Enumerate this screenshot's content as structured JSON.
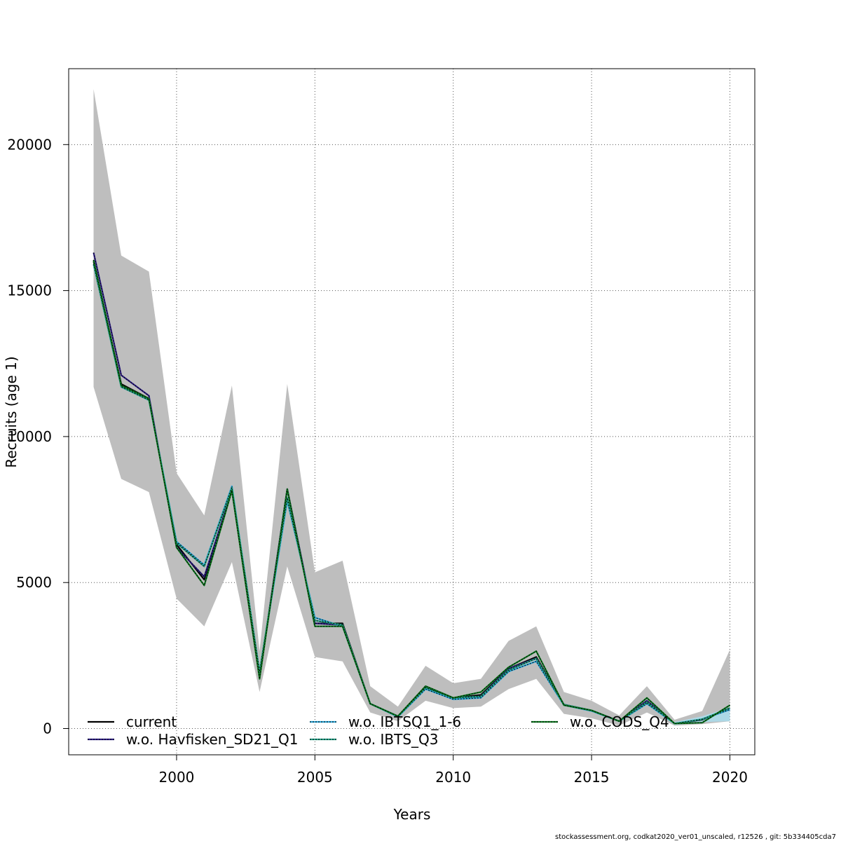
{
  "chart_data": {
    "type": "line",
    "title": "",
    "xlabel": "Years",
    "ylabel": "Recruits (age 1)",
    "xlim": [
      1996.1,
      2020.9
    ],
    "ylim": [
      -900,
      22600
    ],
    "x_ticks": [
      2000,
      2005,
      2010,
      2015,
      2020
    ],
    "x_tick_labels": [
      "2000",
      "2005",
      "2010",
      "2015",
      "2020"
    ],
    "y_ticks": [
      0,
      5000,
      10000,
      15000,
      20000
    ],
    "y_tick_labels": [
      "0",
      "5000",
      "10000",
      "15000",
      "20000"
    ],
    "grid": true,
    "legend_position": "bottom",
    "x": [
      1997,
      1998,
      1999,
      2000,
      2001,
      2002,
      2003,
      2004,
      2005,
      2006,
      2007,
      2008,
      2009,
      2010,
      2011,
      2012,
      2013,
      2014,
      2015,
      2016,
      2017,
      2018,
      2019,
      2020
    ],
    "confidence_band": {
      "color": "#BEBEBE",
      "upper": [
        21900,
        16200,
        15650,
        8750,
        7300,
        11750,
        2650,
        11800,
        5350,
        5750,
        1450,
        750,
        2150,
        1550,
        1700,
        3000,
        3500,
        1250,
        950,
        450,
        1450,
        300,
        600,
        2700
      ],
      "lower": [
        11700,
        8550,
        8100,
        4450,
        3500,
        5700,
        1250,
        5550,
        2450,
        2300,
        550,
        250,
        950,
        700,
        750,
        1350,
        1700,
        500,
        350,
        100,
        550,
        100,
        150,
        250
      ]
    },
    "extra_band": {
      "color": "#ADD8E6",
      "upper": [
        null,
        null,
        null,
        null,
        null,
        null,
        null,
        null,
        null,
        null,
        null,
        null,
        null,
        null,
        null,
        null,
        null,
        null,
        null,
        null,
        null,
        220,
        420,
        720
      ],
      "lower": [
        null,
        null,
        null,
        null,
        null,
        null,
        null,
        null,
        null,
        null,
        null,
        null,
        null,
        null,
        null,
        null,
        null,
        null,
        null,
        null,
        null,
        120,
        220,
        250
      ]
    },
    "series": [
      {
        "name": "current",
        "color": "#000000",
        "dash": "solid",
        "values": [
          16000,
          11800,
          11300,
          6300,
          5100,
          8200,
          1800,
          8200,
          3600,
          3600,
          850,
          420,
          1450,
          1050,
          1150,
          2050,
          2450,
          820,
          620,
          250,
          950,
          170,
          300,
          700
        ]
      },
      {
        "name": "w.o. Havfisken_SD21_Q1",
        "color": "#2E1E88",
        "dash": "solid",
        "values": [
          16300,
          12100,
          11400,
          6200,
          5200,
          8150,
          1800,
          8200,
          3600,
          3550,
          850,
          420,
          1400,
          1050,
          1100,
          2050,
          2400,
          820,
          620,
          250,
          950,
          170,
          320,
          650
        ]
      },
      {
        "name": "w.o. IBTSQ1_1-6",
        "color": "#29A7DC",
        "dash": "solid",
        "values": [
          15900,
          11700,
          11250,
          6400,
          5600,
          8300,
          1900,
          7800,
          3800,
          3500,
          850,
          400,
          1350,
          1000,
          1050,
          1950,
          2300,
          800,
          600,
          250,
          850,
          170,
          320,
          650
        ]
      },
      {
        "name": "w.o. IBTS_Q3",
        "color": "#23A389",
        "dash": "solid",
        "values": [
          15900,
          11700,
          11250,
          6350,
          5550,
          8250,
          1950,
          7900,
          3700,
          3550,
          850,
          420,
          1400,
          1050,
          1100,
          2000,
          2400,
          820,
          620,
          250,
          900,
          170,
          320,
          700
        ]
      },
      {
        "name": "w.o. CODS_Q4",
        "color": "#0A7A1E",
        "dash": "solid",
        "values": [
          16050,
          11750,
          11300,
          6200,
          4900,
          8150,
          1700,
          8200,
          3500,
          3500,
          850,
          420,
          1450,
          1050,
          1250,
          2100,
          2650,
          800,
          620,
          250,
          1050,
          170,
          200,
          800
        ]
      }
    ]
  },
  "footer": {
    "text": "stockassessment.org, codkat2020_ver01_unscaled, r12526 , git: 5b334405cda7"
  }
}
